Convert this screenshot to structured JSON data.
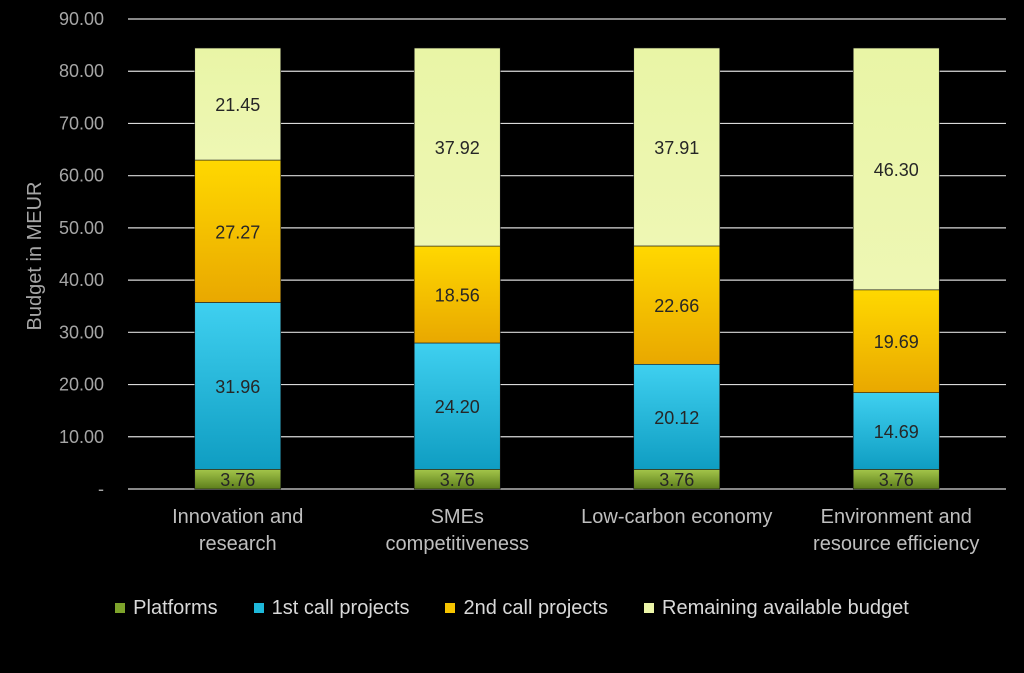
{
  "chart_data": {
    "type": "bar",
    "stacked": true,
    "title": "",
    "xlabel": "",
    "ylabel": "Budget in MEUR",
    "ylim": [
      0,
      90
    ],
    "ytick_values": [
      0,
      10,
      20,
      30,
      40,
      50,
      60,
      70,
      80,
      90
    ],
    "ytick_labels": [
      "-",
      "10.00",
      "20.00",
      "30.00",
      "40.00",
      "50.00",
      "60.00",
      "70.00",
      "80.00",
      "90.00"
    ],
    "grid": true,
    "legend_position": "bottom",
    "categories": [
      [
        "Innovation and",
        "research"
      ],
      [
        "SMEs",
        "competitiveness"
      ],
      [
        "Low-carbon economy"
      ],
      [
        "Environment and",
        "resource efficiency"
      ]
    ],
    "series": [
      {
        "name": "Platforms",
        "color": "#7ea32b",
        "values": [
          3.76,
          3.76,
          3.76,
          3.76
        ],
        "labels": [
          "3.76",
          "3.76",
          "3.76",
          "3.76"
        ]
      },
      {
        "name": "1st call projects",
        "color": "#1eb8da",
        "values": [
          31.96,
          24.2,
          20.12,
          14.69
        ],
        "labels": [
          "31.96",
          "24.20",
          "20.12",
          "14.69"
        ]
      },
      {
        "name": "2nd call projects",
        "color": "#f5c400",
        "values": [
          27.27,
          18.56,
          22.66,
          19.69
        ],
        "labels": [
          "27.27",
          "18.56",
          "22.66",
          "19.69"
        ]
      },
      {
        "name": "Remaining available budget",
        "color": "#ecf5a8",
        "values": [
          21.45,
          37.92,
          37.91,
          46.3
        ],
        "labels": [
          "21.45",
          "37.92",
          "37.91",
          "46.30"
        ]
      }
    ]
  }
}
